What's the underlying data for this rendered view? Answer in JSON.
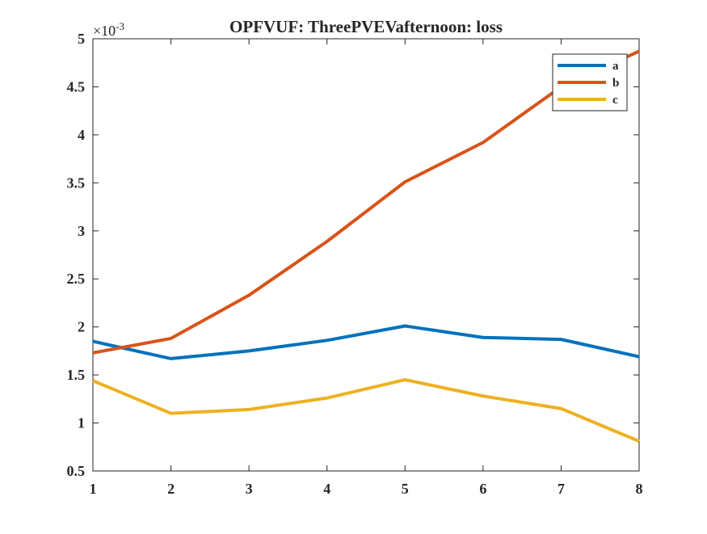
{
  "chart_data": {
    "type": "line",
    "title": "OPFVUF: ThreePVEVafternoon: loss",
    "xlabel": "",
    "ylabel": "",
    "y_exponent_label": "×10",
    "y_exponent_power": "-3",
    "x": [
      1,
      2,
      3,
      4,
      5,
      6,
      7,
      8
    ],
    "xlim": [
      1,
      8
    ],
    "ylim": [
      0.5,
      5
    ],
    "xticks": [
      1,
      2,
      3,
      4,
      5,
      6,
      7,
      8
    ],
    "yticks": [
      0.5,
      1,
      1.5,
      2,
      2.5,
      3,
      3.5,
      4,
      4.5,
      5
    ],
    "ytick_labels": [
      "0.5",
      "1",
      "1.5",
      "2",
      "2.5",
      "3",
      "3.5",
      "4",
      "4.5",
      "5"
    ],
    "grid": false,
    "legend_position": "top-right",
    "series": [
      {
        "name": "a",
        "color": "#0072BD",
        "values": [
          1.85,
          1.67,
          1.75,
          1.86,
          2.01,
          1.89,
          1.87,
          1.69
        ]
      },
      {
        "name": "b",
        "color": "#D95319",
        "values": [
          1.73,
          1.88,
          2.33,
          2.89,
          3.51,
          3.92,
          4.5,
          4.87
        ]
      },
      {
        "name": "c",
        "color": "#EDB120",
        "values": [
          1.44,
          1.1,
          1.14,
          1.26,
          1.45,
          1.28,
          1.15,
          0.81
        ]
      }
    ]
  }
}
